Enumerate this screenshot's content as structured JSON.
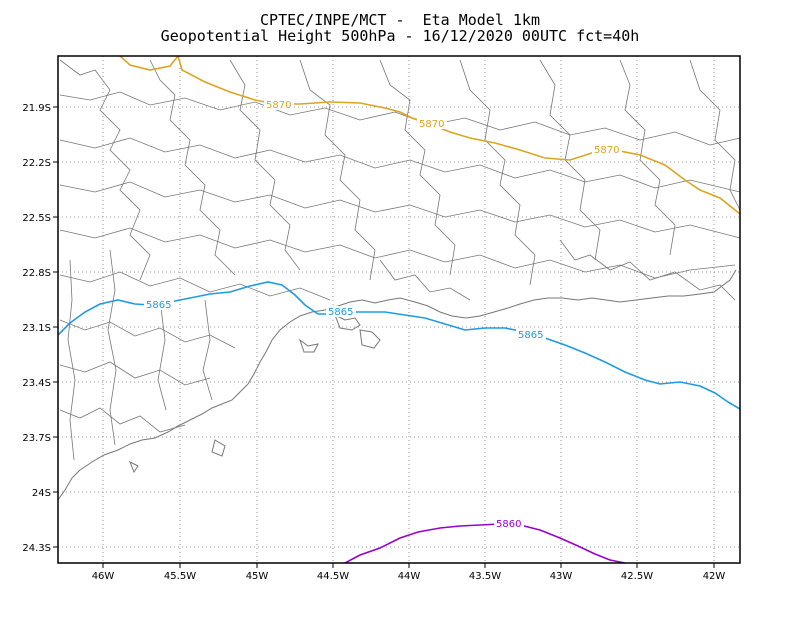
{
  "header": {
    "line1": "CPTEC/INPE/MCT -  Eta Model 1km",
    "line2": "Geopotential Height 500hPa - 16/12/2020 00UTC fct=40h"
  },
  "axes": {
    "lat_labels": [
      "21.9S",
      "22.2S",
      "22.5S",
      "22.8S",
      "23.1S",
      "23.4S",
      "23.7S",
      "24S",
      "24.3S"
    ],
    "lon_labels": [
      "46W",
      "45.5W",
      "45W",
      "44.5W",
      "44W",
      "43.5W",
      "43W",
      "42.5W",
      "42W"
    ],
    "grid": "dotted"
  },
  "colors": {
    "contour_5870": "#DAA520",
    "contour_5865": "#1E9BE8",
    "contour_5860": "#9900CC",
    "boundaries": "#777777",
    "grid": "#999999"
  },
  "contours": [
    {
      "value": "5870",
      "labels": [
        "5870",
        "5870",
        "5870"
      ]
    },
    {
      "value": "5865",
      "labels": [
        "5865",
        "5865",
        "5865"
      ]
    },
    {
      "value": "5860",
      "labels": [
        "5860"
      ]
    }
  ]
}
